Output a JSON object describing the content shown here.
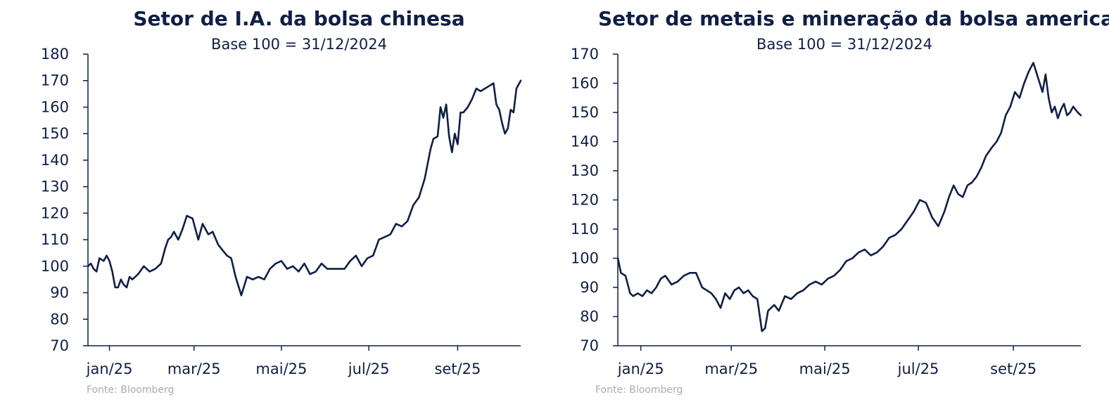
{
  "chart_data": [
    {
      "type": "line",
      "title": "Setor de I.A. da bolsa chinesa",
      "subtitle": "Base 100 = 31/12/2024",
      "source": "Fonte: Bloomberg",
      "ylim": [
        70,
        180
      ],
      "yticks": [
        70,
        80,
        90,
        100,
        110,
        120,
        130,
        140,
        150,
        160,
        170,
        180
      ],
      "xlim": [
        "2024-12-31",
        "2025-10-29"
      ],
      "xticks": [
        {
          "date": "2025-01-15",
          "label": "jan/25"
        },
        {
          "date": "2025-03-15",
          "label": "mar/25"
        },
        {
          "date": "2025-05-15",
          "label": "mai/25"
        },
        {
          "date": "2025-07-15",
          "label": "jul/25"
        },
        {
          "date": "2025-09-15",
          "label": "set/25"
        }
      ],
      "grid": false,
      "color": "#0f1f45",
      "series": [
        {
          "x": [
            "2024-12-31",
            "2025-01-02",
            "2025-01-04",
            "2025-01-06",
            "2025-01-08",
            "2025-01-11",
            "2025-01-13",
            "2025-01-15",
            "2025-01-17",
            "2025-01-19",
            "2025-01-21",
            "2025-01-23",
            "2025-01-25",
            "2025-01-27",
            "2025-01-29",
            "2025-01-31",
            "2025-02-04",
            "2025-02-08",
            "2025-02-12",
            "2025-02-16",
            "2025-02-20",
            "2025-02-23",
            "2025-02-25",
            "2025-02-27",
            "2025-03-01",
            "2025-03-04",
            "2025-03-07",
            "2025-03-10",
            "2025-03-14",
            "2025-03-18",
            "2025-03-21",
            "2025-03-25",
            "2025-03-28",
            "2025-04-01",
            "2025-04-04",
            "2025-04-07",
            "2025-04-10",
            "2025-04-13",
            "2025-04-17",
            "2025-04-21",
            "2025-04-25",
            "2025-04-29",
            "2025-05-03",
            "2025-05-07",
            "2025-05-11",
            "2025-05-15",
            "2025-05-19",
            "2025-05-23",
            "2025-05-27",
            "2025-05-31",
            "2025-06-04",
            "2025-06-08",
            "2025-06-12",
            "2025-06-16",
            "2025-06-20",
            "2025-06-24",
            "2025-06-28",
            "2025-07-02",
            "2025-07-06",
            "2025-07-10",
            "2025-07-14",
            "2025-07-18",
            "2025-07-22",
            "2025-07-26",
            "2025-07-30",
            "2025-08-03",
            "2025-08-07",
            "2025-08-11",
            "2025-08-15",
            "2025-08-19",
            "2025-08-23",
            "2025-08-27",
            "2025-08-29",
            "2025-09-01",
            "2025-09-03",
            "2025-09-05",
            "2025-09-07",
            "2025-09-09",
            "2025-09-11",
            "2025-09-13",
            "2025-09-15",
            "2025-09-17",
            "2025-09-19",
            "2025-09-22",
            "2025-09-25",
            "2025-09-28",
            "2025-10-01",
            "2025-10-04",
            "2025-10-07",
            "2025-10-10",
            "2025-10-12",
            "2025-10-14",
            "2025-10-16",
            "2025-10-18",
            "2025-10-20",
            "2025-10-22",
            "2025-10-24",
            "2025-10-26",
            "2025-10-29"
          ],
          "y": [
            100,
            101,
            99,
            98,
            103,
            102,
            104,
            102,
            98,
            92,
            92,
            95,
            93,
            92,
            96,
            95,
            97,
            100,
            98,
            99,
            101,
            107,
            110,
            111,
            113,
            110,
            114,
            119,
            118,
            110,
            116,
            112,
            113,
            108,
            106,
            104,
            103,
            96,
            89,
            96,
            95,
            96,
            95,
            99,
            101,
            102,
            99,
            100,
            98,
            101,
            97,
            98,
            101,
            99,
            99,
            99,
            99,
            102,
            104,
            100,
            103,
            104,
            110,
            111,
            112,
            116,
            115,
            117,
            123,
            126,
            133,
            144,
            148,
            149,
            160,
            156,
            161,
            149,
            143,
            150,
            146,
            158,
            158,
            160,
            163,
            167,
            166,
            167,
            168,
            169,
            161,
            159,
            154,
            150,
            152,
            159,
            158,
            167,
            170
          ]
        }
      ]
    },
    {
      "type": "line",
      "title": "Setor de metais e mineração da bolsa americana",
      "subtitle": "Base 100 = 31/12/2024",
      "source": "Fonte: Bloomberg",
      "ylim": [
        70,
        170
      ],
      "yticks": [
        70,
        80,
        90,
        100,
        110,
        120,
        130,
        140,
        150,
        160,
        170
      ],
      "xlim": [
        "2024-12-31",
        "2025-10-29"
      ],
      "xticks": [
        {
          "date": "2025-01-15",
          "label": "jan/25"
        },
        {
          "date": "2025-03-15",
          "label": "mar/25"
        },
        {
          "date": "2025-05-15",
          "label": "mai/25"
        },
        {
          "date": "2025-07-15",
          "label": "jul/25"
        },
        {
          "date": "2025-09-15",
          "label": "set/25"
        }
      ],
      "grid": false,
      "color": "#0f1f45",
      "series": [
        {
          "x": [
            "2024-12-31",
            "2025-01-02",
            "2025-01-05",
            "2025-01-08",
            "2025-01-10",
            "2025-01-13",
            "2025-01-16",
            "2025-01-19",
            "2025-01-22",
            "2025-01-25",
            "2025-01-28",
            "2025-01-31",
            "2025-02-04",
            "2025-02-08",
            "2025-02-12",
            "2025-02-16",
            "2025-02-20",
            "2025-02-24",
            "2025-02-27",
            "2025-03-02",
            "2025-03-05",
            "2025-03-08",
            "2025-03-11",
            "2025-03-14",
            "2025-03-17",
            "2025-03-20",
            "2025-03-23",
            "2025-03-26",
            "2025-03-29",
            "2025-04-01",
            "2025-04-04",
            "2025-04-06",
            "2025-04-08",
            "2025-04-10",
            "2025-04-12",
            "2025-04-15",
            "2025-04-19",
            "2025-04-23",
            "2025-04-27",
            "2025-05-01",
            "2025-05-05",
            "2025-05-09",
            "2025-05-13",
            "2025-05-17",
            "2025-05-21",
            "2025-05-25",
            "2025-05-29",
            "2025-06-02",
            "2025-06-06",
            "2025-06-10",
            "2025-06-14",
            "2025-06-18",
            "2025-06-22",
            "2025-06-26",
            "2025-06-30",
            "2025-07-04",
            "2025-07-08",
            "2025-07-12",
            "2025-07-16",
            "2025-07-20",
            "2025-07-24",
            "2025-07-28",
            "2025-08-01",
            "2025-08-04",
            "2025-08-07",
            "2025-08-10",
            "2025-08-13",
            "2025-08-16",
            "2025-08-19",
            "2025-08-22",
            "2025-08-25",
            "2025-08-28",
            "2025-09-01",
            "2025-09-04",
            "2025-09-07",
            "2025-09-10",
            "2025-09-13",
            "2025-09-16",
            "2025-09-19",
            "2025-09-22",
            "2025-09-25",
            "2025-09-28",
            "2025-10-01",
            "2025-10-04",
            "2025-10-06",
            "2025-10-08",
            "2025-10-10",
            "2025-10-12",
            "2025-10-14",
            "2025-10-16",
            "2025-10-18",
            "2025-10-20",
            "2025-10-22",
            "2025-10-24",
            "2025-10-27",
            "2025-10-29"
          ],
          "y": [
            100,
            95,
            94,
            88,
            87,
            88,
            87,
            89,
            88,
            90,
            93,
            94,
            91,
            92,
            94,
            95,
            95,
            90,
            89,
            88,
            86,
            83,
            88,
            86,
            89,
            90,
            88,
            89,
            87,
            86,
            75,
            76,
            82,
            83,
            84,
            82,
            87,
            86,
            88,
            89,
            91,
            92,
            91,
            93,
            94,
            96,
            99,
            100,
            102,
            103,
            101,
            102,
            104,
            107,
            108,
            110,
            113,
            116,
            120,
            119,
            114,
            111,
            116,
            121,
            125,
            122,
            121,
            125,
            126,
            128,
            131,
            135,
            138,
            140,
            143,
            149,
            152,
            157,
            155,
            160,
            164,
            167,
            162,
            157,
            163,
            155,
            150,
            152,
            148,
            151,
            153,
            149,
            150,
            152,
            150,
            149
          ]
        }
      ]
    }
  ]
}
